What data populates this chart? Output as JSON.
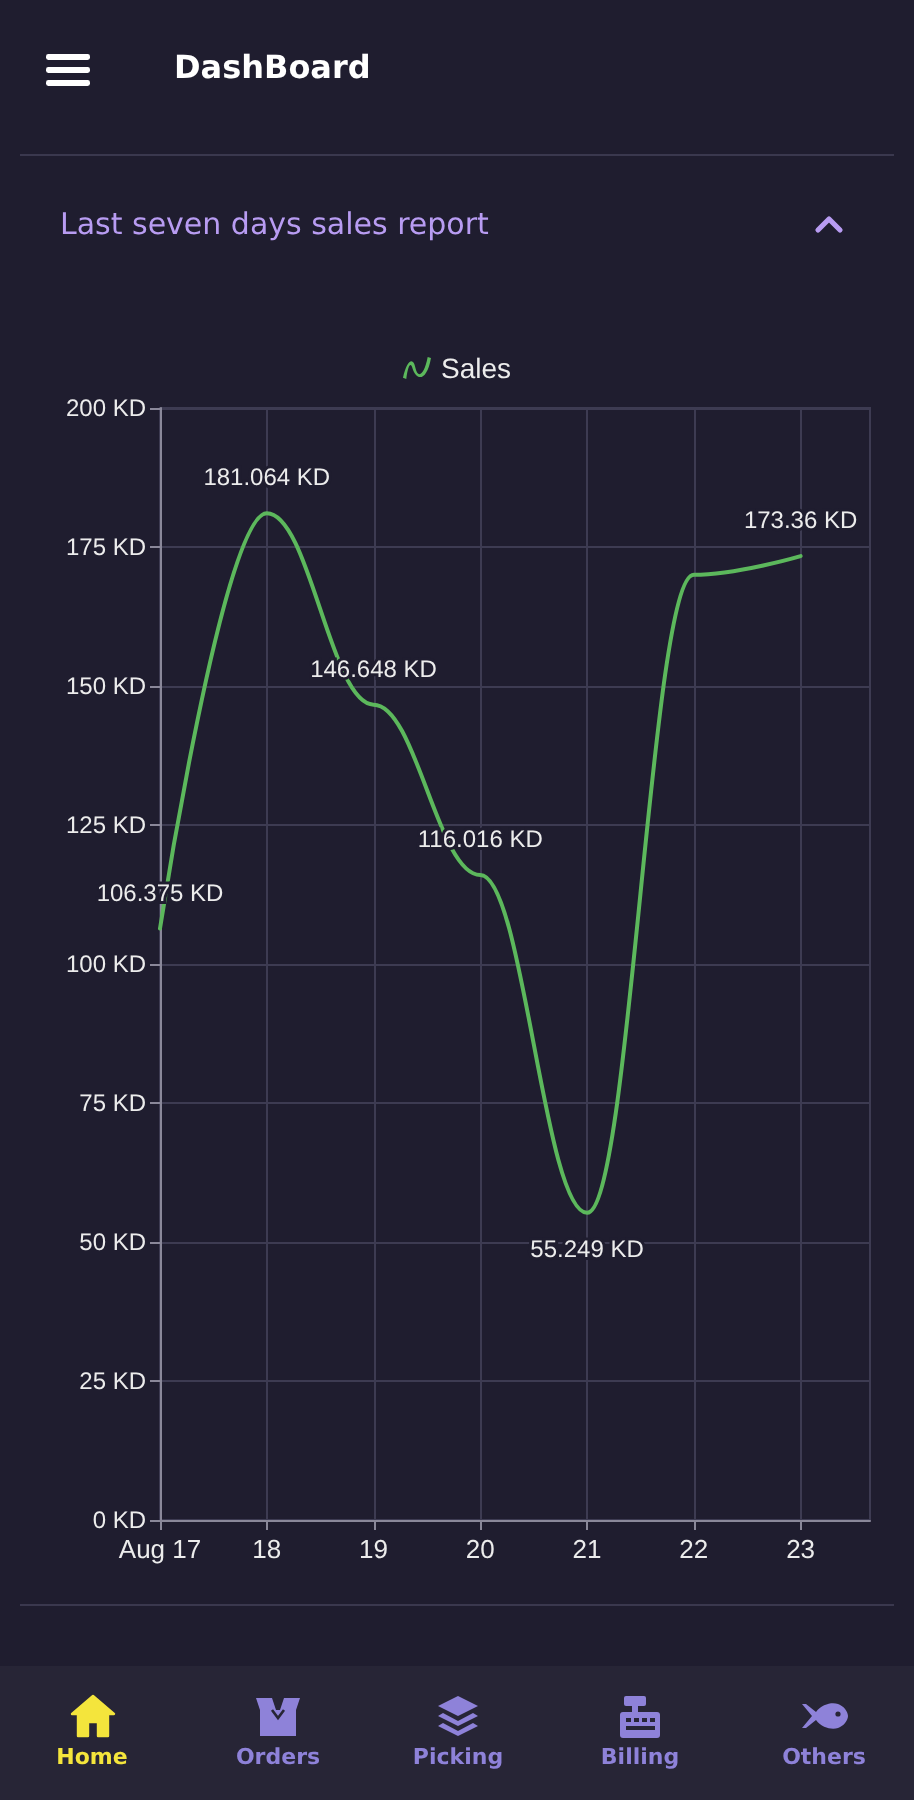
{
  "chart_data": {
    "type": "line",
    "title": "Last seven days sales report",
    "annotations": [
      "DashBoard",
      "Home",
      "Orders",
      "Picking",
      "Billing",
      "Others"
    ],
    "x": [
      17,
      18,
      19,
      20,
      21,
      22,
      23
    ],
    "series": [
      {
        "name": "Sales",
        "color": "#5cb85c",
        "values": [
          106.375,
          181.064,
          146.648,
          116.016,
          55.249,
          170,
          173.36
        ],
        "value_labels": [
          "106.375 KD",
          "181.064 KD",
          "146.648 KD",
          "116.016 KD",
          "55.249 KD",
          null,
          "173.36 KD"
        ]
      }
    ],
    "xlim": [
      17,
      23.65
    ],
    "xticks": [
      {
        "value": 17,
        "label": "Aug 17"
      },
      18,
      19,
      20,
      21,
      22,
      23
    ],
    "ylim": [
      0,
      200
    ],
    "yticks": [
      {
        "value": 0,
        "label": "0 KD"
      },
      {
        "value": 25,
        "label": "25 KD"
      },
      {
        "value": 50,
        "label": "50 KD"
      },
      {
        "value": 75,
        "label": "75 KD"
      },
      {
        "value": 100,
        "label": "100 KD"
      },
      {
        "value": 125,
        "label": "125 KD"
      },
      {
        "value": 150,
        "label": "150 KD"
      },
      {
        "value": 175,
        "label": "175 KD"
      },
      {
        "value": 200,
        "label": "200 KD"
      }
    ],
    "grid": true,
    "legend": "top",
    "marker": "none"
  }
}
